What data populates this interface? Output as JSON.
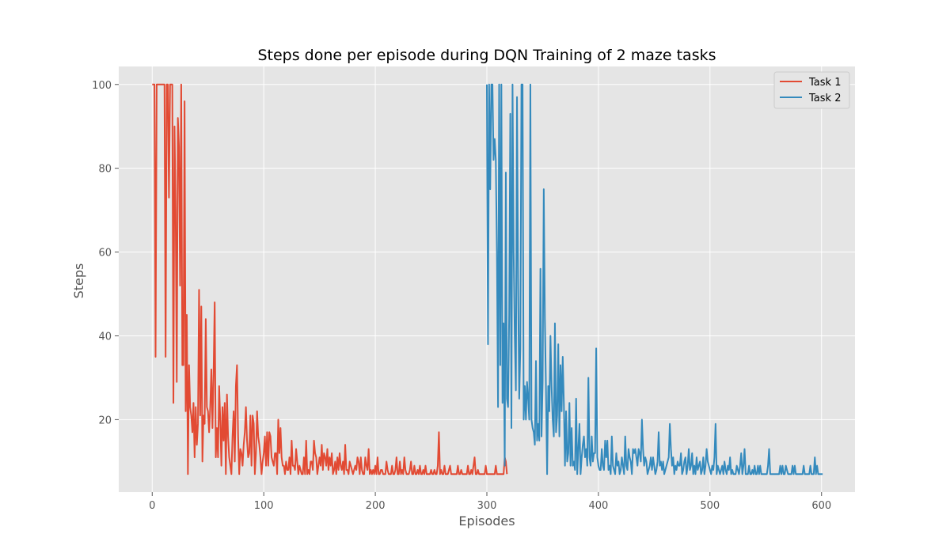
{
  "chart_data": {
    "type": "line",
    "title": "Steps done per episode during DQN Training of 2 maze tasks",
    "xlabel": "Episodes",
    "ylabel": "Steps",
    "xlim": [
      -30,
      630
    ],
    "ylim": [
      2.7,
      104.3
    ],
    "xticks": [
      0,
      100,
      200,
      300,
      400,
      500,
      600
    ],
    "yticks": [
      20,
      40,
      60,
      80,
      100
    ],
    "grid": true,
    "legend_position": "top-right",
    "colors": {
      "background": "#e5e5e5",
      "grid": "#ffffff",
      "task1": "#e24a33",
      "task2": "#348abd",
      "text": "#555555"
    },
    "series": [
      {
        "name": "Task 1",
        "x_start": 0,
        "values": [
          100,
          100,
          100,
          35,
          100,
          100,
          100,
          100,
          100,
          100,
          100,
          100,
          35,
          100,
          100,
          73,
          100,
          100,
          100,
          24,
          90,
          70,
          29,
          92,
          85,
          52,
          100,
          33,
          33,
          96,
          22,
          45,
          7,
          33,
          23,
          21,
          17,
          24,
          11,
          23,
          14,
          19,
          51,
          21,
          47,
          10,
          21,
          19,
          44,
          23,
          22,
          17,
          23,
          32,
          18,
          31,
          48,
          11,
          18,
          11,
          28,
          20,
          9,
          23,
          15,
          24,
          7,
          26,
          16,
          11,
          9,
          7,
          16,
          22,
          10,
          28,
          33,
          16,
          7,
          13,
          12,
          9,
          14,
          17,
          23,
          15,
          11,
          12,
          21,
          9,
          21,
          19,
          7,
          12,
          22,
          16,
          14,
          11,
          7,
          10,
          12,
          16,
          9,
          17,
          9,
          17,
          16,
          11,
          10,
          9,
          12,
          12,
          7,
          20,
          12,
          18,
          11,
          9,
          9,
          7,
          10,
          8,
          8,
          11,
          7,
          15,
          9,
          9,
          8,
          13,
          10,
          7,
          9,
          8,
          7,
          7,
          11,
          7,
          15,
          7,
          8,
          7,
          10,
          10,
          8,
          15,
          12,
          11,
          7,
          9,
          11,
          9,
          14,
          8,
          12,
          11,
          9,
          13,
          8,
          11,
          9,
          12,
          7,
          8,
          10,
          7,
          11,
          8,
          12,
          9,
          8,
          10,
          7,
          14,
          8,
          8,
          7,
          10,
          9,
          8,
          7,
          8,
          9,
          8,
          11,
          10,
          7,
          11,
          8,
          7,
          7,
          11,
          9,
          8,
          13,
          7,
          8,
          7,
          8,
          7,
          9,
          7,
          11,
          7,
          7,
          8,
          8,
          7,
          7,
          7,
          10,
          8,
          7,
          7,
          7,
          9,
          7,
          7,
          8,
          11,
          7,
          7,
          10,
          7,
          8,
          7,
          11,
          8,
          7,
          7,
          7,
          8,
          10,
          7,
          7,
          9,
          7,
          7,
          8,
          7,
          9,
          7,
          7,
          8,
          7,
          9,
          7,
          7,
          7,
          7,
          8,
          7,
          7,
          8,
          7,
          7,
          9,
          17,
          7,
          8,
          7,
          7,
          9,
          7,
          7,
          7,
          8,
          9,
          7,
          7,
          7,
          7,
          7,
          7,
          9,
          7,
          7,
          8,
          7,
          7,
          7,
          7,
          7,
          9,
          7,
          7,
          8,
          7,
          9,
          11,
          7,
          7,
          8,
          7,
          7,
          7,
          7,
          7,
          7,
          9,
          7,
          7,
          7,
          7,
          7,
          7,
          7,
          7,
          9,
          7,
          7,
          7,
          7,
          7,
          7,
          7,
          11,
          10,
          7
        ]
      },
      {
        "name": "Task 2",
        "x_start": 300,
        "values": [
          100,
          38,
          100,
          75,
          100,
          100,
          82,
          87,
          82,
          60,
          23,
          100,
          33,
          100,
          24,
          43,
          9,
          79,
          25,
          23,
          45,
          93,
          18,
          100,
          60,
          40,
          27,
          97,
          53,
          25,
          37,
          100,
          100,
          20,
          28,
          20,
          29,
          25,
          20,
          100,
          20,
          18,
          17,
          14,
          34,
          15,
          19,
          15,
          56,
          16,
          29,
          75,
          44,
          27,
          7,
          28,
          22,
          40,
          28,
          20,
          16,
          43,
          17,
          21,
          38,
          16,
          33,
          22,
          35,
          24,
          9,
          22,
          10,
          12,
          24,
          9,
          18,
          9,
          10,
          8,
          25,
          7,
          13,
          19,
          7,
          11,
          14,
          16,
          11,
          13,
          9,
          30,
          11,
          9,
          16,
          10,
          12,
          12,
          37,
          11,
          9,
          8,
          8,
          13,
          9,
          8,
          15,
          11,
          15,
          8,
          9,
          7,
          16,
          9,
          8,
          7,
          12,
          9,
          10,
          7,
          8,
          11,
          9,
          7,
          16,
          9,
          8,
          13,
          11,
          10,
          7,
          13,
          12,
          13,
          11,
          9,
          13,
          12,
          10,
          20,
          13,
          9,
          11,
          10,
          7,
          8,
          9,
          11,
          8,
          11,
          9,
          7,
          8,
          10,
          17,
          9,
          10,
          8,
          10,
          7,
          8,
          9,
          10,
          11,
          19,
          13,
          9,
          11,
          7,
          9,
          8,
          10,
          9,
          9,
          12,
          7,
          8,
          10,
          11,
          7,
          9,
          13,
          8,
          9,
          12,
          7,
          9,
          7,
          11,
          8,
          9,
          10,
          7,
          8,
          11,
          7,
          9,
          13,
          10,
          9,
          8,
          7,
          9,
          8,
          11,
          19,
          7,
          9,
          8,
          7,
          8,
          9,
          7,
          10,
          8,
          7,
          9,
          8,
          11,
          7,
          8,
          7,
          7,
          7,
          9,
          8,
          7,
          9,
          12,
          7,
          9,
          13,
          7,
          7,
          7,
          9,
          7,
          7,
          8,
          7,
          9,
          7,
          7,
          9,
          7,
          9,
          7,
          7,
          7,
          7,
          7,
          7,
          9,
          13,
          7,
          7,
          7,
          7,
          7,
          7,
          7,
          7,
          7,
          9,
          7,
          9,
          7,
          7,
          9,
          8,
          7,
          7,
          7,
          7,
          9,
          7,
          9,
          7,
          7,
          7,
          7,
          7,
          7,
          7,
          9,
          7,
          7,
          7,
          7,
          7,
          9,
          7,
          7,
          7,
          11,
          7,
          9,
          7,
          7,
          7,
          7,
          7
        ]
      }
    ]
  }
}
